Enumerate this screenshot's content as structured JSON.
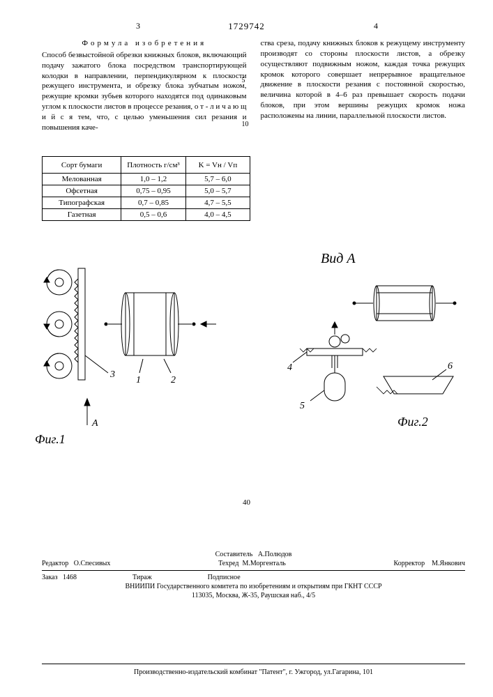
{
  "doc_number": "1729742",
  "page_left": "3",
  "page_right": "4",
  "line_markers": {
    "m5": "5",
    "m10": "10"
  },
  "formula_title": "Формула изобретения",
  "left_col_text": "Способ безвыстойной обрезки книжных блоков, включающий подачу зажатого блока посредством транспортирующей колодки в направлении, перпендикулярном к плоскости режущего инструмента, и обрезку блока зубчатым ножом, режущие кромки зубьев которого находятся под одинаковым углом к плоскости листов в процессе резания, о т - л и ч а ю щ и й с я   тем, что, с целью уменьшения сил резания и повышения каче-",
  "right_col_text": "ства среза, подачу книжных блоков к режущему инструменту производят со стороны плоскости листов, а обрезку осуществляют подвижным ножом, каждая точка режущих кромок которого совершает непрерывное вращательное движение в плоскости резания с постоянной скоростью, величина которой в 4–6 раз превышает скорость подачи блоков, при этом вершины режущих кромок ножа расположены на линии, параллельной плоскости листов.",
  "table": {
    "headers": [
      "Сорт бумаги",
      "Плотность г/см³",
      "K = Vн / Vп"
    ],
    "rows": [
      [
        "Мелованная",
        "1,0 – 1,2",
        "5,7 – 6,0"
      ],
      [
        "Офсетная",
        "0,75 – 0,95",
        "5,0 – 5,7"
      ],
      [
        "Типографская",
        "0,7 – 0,85",
        "4,7 – 5,5"
      ],
      [
        "Газетная",
        "0,5 – 0,6",
        "4,0 – 4,5"
      ]
    ],
    "col_widths": [
      "38%",
      "31%",
      "31%"
    ]
  },
  "figures": {
    "fig1_label": "Фиг.1",
    "fig2_label": "Фиг.2",
    "vid_a": "Вид А",
    "refs": {
      "r1": "1",
      "r2": "2",
      "r3": "3",
      "r4": "4",
      "r5": "5",
      "r6": "6",
      "rA": "A"
    }
  },
  "center_40": "40",
  "colophon": {
    "editor_label": "Редактор",
    "editor": "О.Спесивых",
    "compiler_label": "Составитель",
    "compiler": "А.Полюдов",
    "tehred_label": "Техред",
    "tehred": "М.Моргенталь",
    "corrector_label": "Корректор",
    "corrector": "М.Янкович",
    "order_label": "Заказ",
    "order": "1468",
    "tirazh": "Тираж",
    "podpis": "Подписное",
    "org": "ВНИИПИ Государственного комитета по изобретениям и открытиям при ГКНТ СССР",
    "address": "113035, Москва, Ж-35, Раушская наб., 4/5",
    "bottom": "Производственно-издательский комбинат \"Патент\", г. Ужгород, ул.Гагарина, 101"
  },
  "colors": {
    "text": "#000000",
    "bg": "#ffffff",
    "line": "#000000"
  }
}
